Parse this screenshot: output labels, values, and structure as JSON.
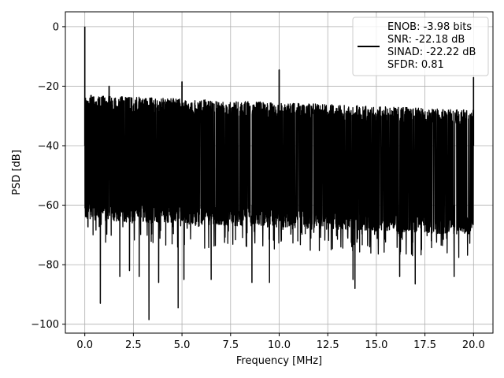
{
  "chart_data": {
    "type": "line",
    "title": "",
    "xlabel": "Frequency [MHz]",
    "ylabel": "PSD [dB]",
    "xlim": [
      -1.0,
      21.0
    ],
    "ylim": [
      -103.0,
      5.0
    ],
    "xticks": [
      0.0,
      2.5,
      5.0,
      7.5,
      10.0,
      12.5,
      15.0,
      17.5,
      20.0
    ],
    "xtick_labels": [
      "0.0",
      "2.5",
      "5.0",
      "7.5",
      "10.0",
      "12.5",
      "15.0",
      "17.5",
      "20.0"
    ],
    "yticks": [
      0,
      -20,
      -40,
      -60,
      -80,
      -100
    ],
    "ytick_labels": [
      "0",
      "−20",
      "−40",
      "−60",
      "−80",
      "−100"
    ],
    "grid": true,
    "legend_position": "top-right",
    "series_color": "#000000",
    "legend": {
      "lines": [
        "ENOB: -3.98 bits",
        "SNR: -22.18 dB",
        "SINAD: -22.22 dB",
        "SFDR: 0.81"
      ]
    },
    "series": [
      {
        "noise_floor_upper_start": -23,
        "noise_floor_upper_end": -28,
        "noise_floor_lower_start": -62,
        "noise_floor_lower_end": -67,
        "peaks": [
          {
            "x": 0.0,
            "y": 0.0
          },
          {
            "x": 1.25,
            "y": -20.0
          },
          {
            "x": 5.0,
            "y": -18.5
          },
          {
            "x": 10.0,
            "y": -14.5
          },
          {
            "x": 20.0,
            "y": -17.0
          }
        ],
        "dips": [
          {
            "x": 0.8,
            "y": -93.0
          },
          {
            "x": 1.8,
            "y": -84.0
          },
          {
            "x": 2.3,
            "y": -82.0
          },
          {
            "x": 2.8,
            "y": -84.0
          },
          {
            "x": 3.3,
            "y": -98.5
          },
          {
            "x": 3.8,
            "y": -86.0
          },
          {
            "x": 4.8,
            "y": -94.5
          },
          {
            "x": 5.1,
            "y": -85.0
          },
          {
            "x": 6.5,
            "y": -85.0
          },
          {
            "x": 8.6,
            "y": -86.0
          },
          {
            "x": 9.5,
            "y": -86.0
          },
          {
            "x": 13.8,
            "y": -85.0
          },
          {
            "x": 13.9,
            "y": -88.0
          },
          {
            "x": 16.2,
            "y": -84.0
          },
          {
            "x": 17.0,
            "y": -86.5
          },
          {
            "x": 19.0,
            "y": -84.0
          }
        ]
      }
    ]
  }
}
